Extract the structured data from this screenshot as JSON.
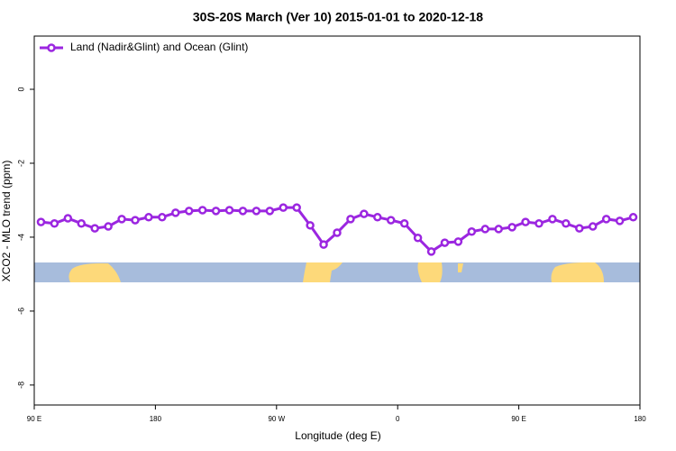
{
  "chart_data": {
    "type": "line",
    "title": "30S-20S March (Ver 10)   2015-01-01 to 2020-12-18",
    "x_label": "Longitude (deg E)",
    "y_label": "XCO2 - MLO trend (ppm)",
    "x": [
      95,
      105,
      115,
      125,
      135,
      145,
      155,
      165,
      175,
      185,
      195,
      205,
      215,
      225,
      235,
      245,
      255,
      265,
      275,
      285,
      295,
      305,
      315,
      325,
      335,
      345,
      355,
      365,
      375,
      385,
      395,
      405,
      415,
      425,
      435,
      445,
      455,
      465,
      475,
      485,
      495,
      505,
      515,
      525,
      535
    ],
    "series": [
      {
        "name": "Land (Nadir&Glint) and Ocean (Glint)",
        "color": "#9b26e0",
        "values": [
          -3.59,
          -3.63,
          -3.49,
          -3.63,
          -3.76,
          -3.71,
          -3.51,
          -3.54,
          -3.46,
          -3.46,
          -3.34,
          -3.29,
          -3.27,
          -3.29,
          -3.27,
          -3.29,
          -3.29,
          -3.29,
          -3.2,
          -3.2,
          -3.68,
          -4.2,
          -3.88,
          -3.51,
          -3.37,
          -3.46,
          -3.54,
          -3.63,
          -4.02,
          -4.39,
          -4.15,
          -4.12,
          -3.85,
          -3.78,
          -3.78,
          -3.73,
          -3.59,
          -3.63,
          -3.51,
          -3.63,
          -3.76,
          -3.71,
          -3.51,
          -3.56,
          -3.46
        ]
      }
    ],
    "xlim": [
      90,
      540
    ],
    "xticks": [
      {
        "value": 90,
        "label": "90 E"
      },
      180,
      {
        "value": 270,
        "label": "90 W"
      },
      {
        "value": 360,
        "label": "0"
      },
      {
        "value": 450,
        "label": "90 E"
      },
      {
        "value": 540,
        "label": "180"
      }
    ],
    "ylim": [
      -8.54,
      1.44
    ],
    "yticks": [
      -8,
      -6,
      -4,
      -2,
      0
    ],
    "legend": "top-left"
  }
}
